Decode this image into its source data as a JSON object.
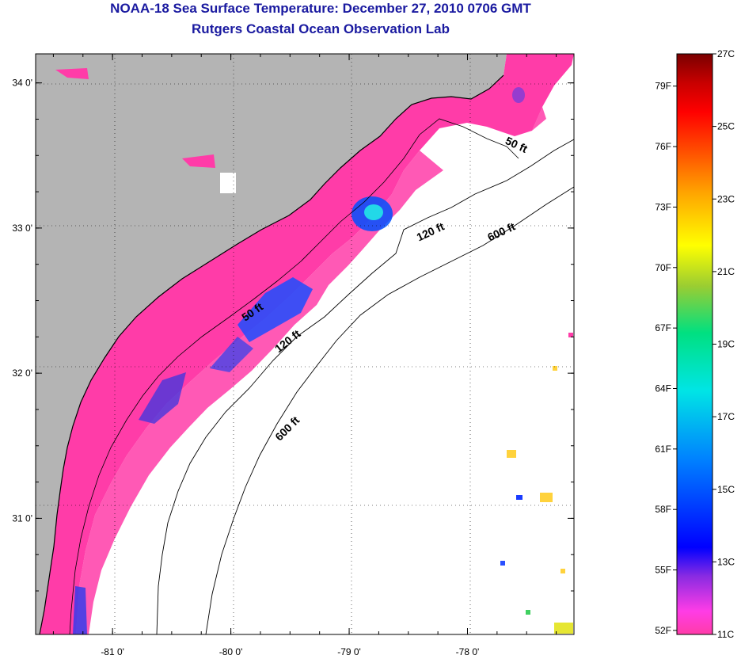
{
  "title": "NOAA-18 Sea Surface Temperature:  December 27, 2010 0706 GMT",
  "subtitle": "Rutgers Coastal Ocean Observation Lab",
  "map": {
    "lon_range": [
      -81.65,
      -77.1
    ],
    "lat_range": [
      30.2,
      34.2
    ],
    "lat_ticks": [
      {
        "value": 34,
        "label": "34 0'"
      },
      {
        "value": 33,
        "label": "33 0'"
      },
      {
        "value": 32,
        "label": "32 0'"
      },
      {
        "value": 31,
        "label": "31 0'"
      }
    ],
    "lon_ticks": [
      {
        "value": -81,
        "label": "-81 0'"
      },
      {
        "value": -80,
        "label": "-80 0'"
      },
      {
        "value": -79,
        "label": "-79 0'"
      },
      {
        "value": -78,
        "label": "-78 0'"
      }
    ],
    "contour_labels": [
      {
        "text": "50 ft",
        "lon": -77.6,
        "lat": 33.55
      },
      {
        "text": "120 ft",
        "lon": -78.3,
        "lat": 32.95
      },
      {
        "text": "600 ft",
        "lon": -77.7,
        "lat": 32.95
      },
      {
        "text": "50 ft",
        "lon": -79.8,
        "lat": 32.4
      },
      {
        "text": "120 ft",
        "lon": -79.5,
        "lat": 32.2
      },
      {
        "text": "600 ft",
        "lon": -79.5,
        "lat": 31.6
      }
    ],
    "land_color": "#b4b4b4",
    "water_color": "#ffffff"
  },
  "colorbar": {
    "range_c": [
      11,
      27
    ],
    "fahrenheit_labels": [
      "79F",
      "76F",
      "73F",
      "70F",
      "67F",
      "64F",
      "61F",
      "58F",
      "55F",
      "52F"
    ],
    "celsius_labels": [
      "27C",
      "25C",
      "23C",
      "21C",
      "19C",
      "17C",
      "15C",
      "13C",
      "11C"
    ],
    "colors": [
      "#ff3ca8",
      "#ff3ce6",
      "#8a2be2",
      "#0000ff",
      "#0080ff",
      "#00e5e5",
      "#00e080",
      "#9acd32",
      "#ffff00",
      "#ffa500",
      "#ff4500",
      "#ff0000",
      "#c80000",
      "#7a0000"
    ]
  }
}
